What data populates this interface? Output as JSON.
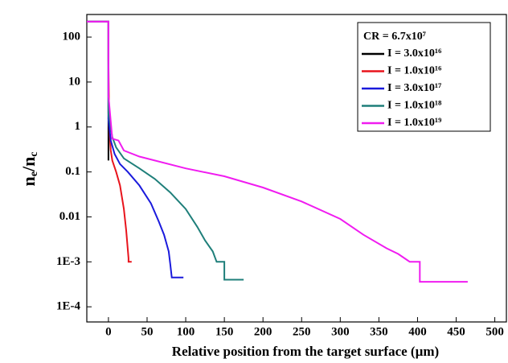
{
  "chart_data": {
    "type": "line",
    "x_label": "Relative position from the target surface (µm)",
    "y_label": [
      "n",
      "e",
      "/n",
      "c"
    ],
    "legend_title": "CR = 6.7x10⁷",
    "log_y": true,
    "legend": "upper right",
    "xlim": [
      -28,
      515
    ],
    "ylim": [
      4.6e-05,
      318
    ],
    "xticks": [
      0,
      50,
      100,
      150,
      200,
      250,
      300,
      350,
      400,
      450,
      500
    ],
    "yticks": [
      100,
      10,
      1,
      0.1,
      0.01,
      {
        "value": 0.001,
        "label": "1E-3"
      },
      {
        "value": 0.0001,
        "label": "1E-4"
      }
    ],
    "series": [
      {
        "name": "I = 3.0x10¹⁶",
        "color": "#000000",
        "x": [
          -28,
          0,
          0,
          0
        ],
        "values": [
          220,
          220,
          1,
          0.18
        ]
      },
      {
        "name": "I = 1.0x10¹⁶",
        "color": "#e8141c",
        "x": [
          -28,
          0,
          0,
          1,
          3,
          5,
          10,
          15,
          20,
          23,
          26,
          26,
          30
        ],
        "values": [
          220,
          220,
          30,
          1,
          0.3,
          0.18,
          0.1,
          0.05,
          0.015,
          0.005,
          0.0012,
          0.001,
          0.001
        ]
      },
      {
        "name": "I = 3.0x10¹⁷",
        "color": "#1a1adc",
        "x": [
          -28,
          0,
          0,
          3,
          8,
          15,
          25,
          40,
          55,
          65,
          72,
          78,
          80,
          82,
          97
        ],
        "values": [
          220,
          220,
          1.5,
          0.5,
          0.25,
          0.15,
          0.1,
          0.05,
          0.02,
          0.008,
          0.004,
          0.0017,
          0.0009,
          0.00045,
          0.00045
        ]
      },
      {
        "name": "I = 1.0x10¹⁸",
        "color": "#1f7f7a",
        "x": [
          -28,
          0,
          0,
          5,
          10,
          20,
          40,
          60,
          80,
          100,
          115,
          125,
          135,
          140,
          150,
          150,
          175
        ],
        "values": [
          220,
          220,
          2,
          0.6,
          0.35,
          0.2,
          0.12,
          0.07,
          0.035,
          0.015,
          0.006,
          0.003,
          0.0017,
          0.001,
          0.001,
          0.0004,
          0.0004
        ]
      },
      {
        "name": "I = 1.0x10¹⁹",
        "color": "#f01cf0",
        "x": [
          -28,
          0,
          0,
          5,
          13,
          20,
          40,
          100,
          150,
          200,
          250,
          300,
          330,
          360,
          375,
          390,
          403,
          403,
          465
        ],
        "values": [
          220,
          220,
          5,
          0.55,
          0.5,
          0.3,
          0.22,
          0.12,
          0.08,
          0.045,
          0.022,
          0.009,
          0.004,
          0.002,
          0.0015,
          0.001,
          0.001,
          0.00036,
          0.00036
        ]
      }
    ]
  }
}
